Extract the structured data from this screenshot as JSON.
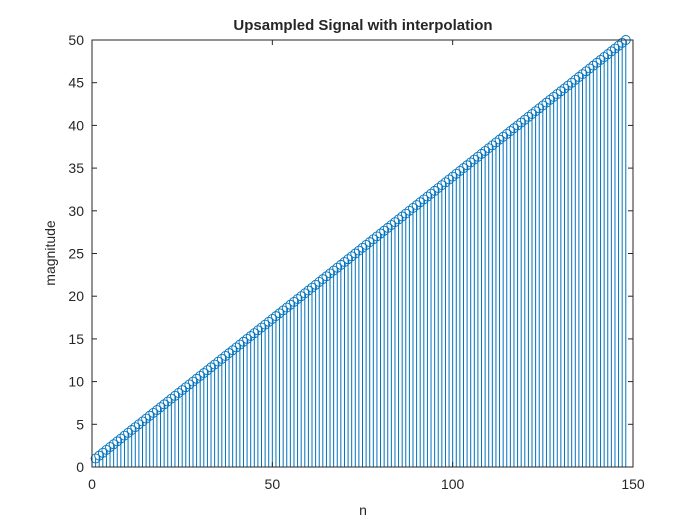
{
  "chart_data": {
    "type": "stem",
    "title": "Upsampled Signal with interpolation",
    "xlabel": "n",
    "ylabel": "magnitude",
    "xlim": [
      0,
      150
    ],
    "ylim": [
      0,
      50
    ],
    "x_ticks": [
      0,
      50,
      100,
      150
    ],
    "y_ticks": [
      0,
      5,
      10,
      15,
      20,
      25,
      30,
      35,
      40,
      45,
      50
    ],
    "x_tick_labels": [
      "0",
      "50",
      "100",
      "150"
    ],
    "y_tick_labels": [
      "0",
      "5",
      "10",
      "15",
      "20",
      "25",
      "30",
      "35",
      "40",
      "45",
      "50"
    ],
    "grid": false,
    "series": [
      {
        "start_n": 1,
        "end_n": 148,
        "step": 1,
        "values": [
          1.0,
          1.3333,
          1.6667,
          2.0,
          2.3333,
          2.6667,
          3.0,
          3.3333,
          3.6667,
          4.0,
          4.3333,
          4.6667,
          5.0,
          5.3333,
          5.6667,
          6.0,
          6.3333,
          6.6667,
          7.0,
          7.3333,
          7.6667,
          8.0,
          8.3333,
          8.6667,
          9.0,
          9.3333,
          9.6667,
          10.0,
          10.3333,
          10.6667,
          11.0,
          11.3333,
          11.6667,
          12.0,
          12.3333,
          12.6667,
          13.0,
          13.3333,
          13.6667,
          14.0,
          14.3333,
          14.6667,
          15.0,
          15.3333,
          15.6667,
          16.0,
          16.3333,
          16.6667,
          17.0,
          17.3333,
          17.6667,
          18.0,
          18.3333,
          18.6667,
          19.0,
          19.3333,
          19.6667,
          20.0,
          20.3333,
          20.6667,
          21.0,
          21.3333,
          21.6667,
          22.0,
          22.3333,
          22.6667,
          23.0,
          23.3333,
          23.6667,
          24.0,
          24.3333,
          24.6667,
          25.0,
          25.3333,
          25.6667,
          26.0,
          26.3333,
          26.6667,
          27.0,
          27.3333,
          27.6667,
          28.0,
          28.3333,
          28.6667,
          29.0,
          29.3333,
          29.6667,
          30.0,
          30.3333,
          30.6667,
          31.0,
          31.3333,
          31.6667,
          32.0,
          32.3333,
          32.6667,
          33.0,
          33.3333,
          33.6667,
          34.0,
          34.3333,
          34.6667,
          35.0,
          35.3333,
          35.6667,
          36.0,
          36.3333,
          36.6667,
          37.0,
          37.3333,
          37.6667,
          38.0,
          38.3333,
          38.6667,
          39.0,
          39.3333,
          39.6667,
          40.0,
          40.3333,
          40.6667,
          41.0,
          41.3333,
          41.6667,
          42.0,
          42.3333,
          42.6667,
          43.0,
          43.3333,
          43.6667,
          44.0,
          44.3333,
          44.6667,
          45.0,
          45.3333,
          45.6667,
          46.0,
          46.3333,
          46.6667,
          47.0,
          47.3333,
          47.6667,
          48.0,
          48.3333,
          48.6667,
          49.0,
          49.3333,
          49.6667,
          50.0
        ],
        "marker": "circle-open",
        "color": "#0072BD"
      }
    ]
  }
}
